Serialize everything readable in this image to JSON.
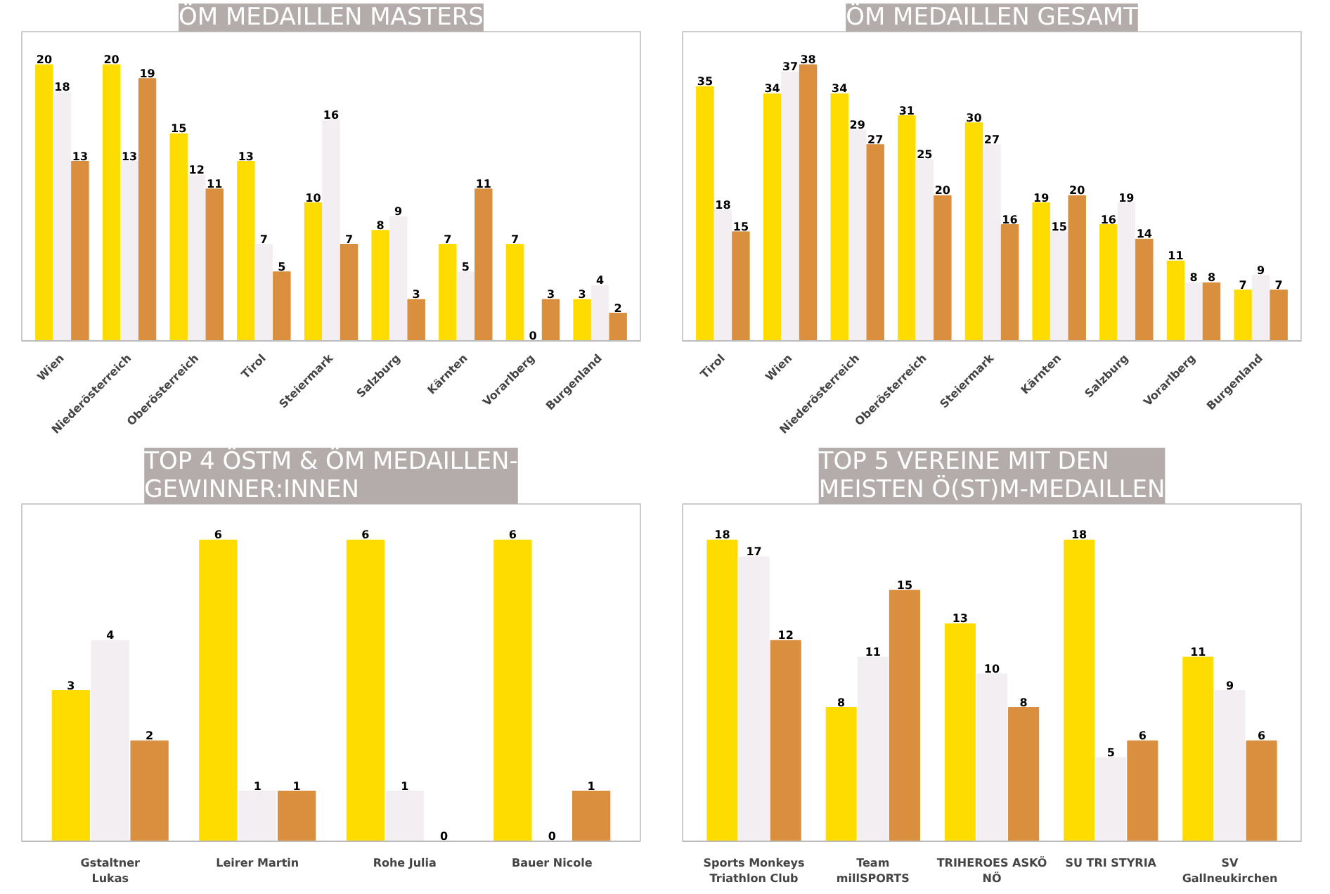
{
  "chart_data": [
    {
      "type": "bar",
      "title": "ÖM MEDAILLEN MASTERS",
      "categories": [
        "Wien",
        "Niederösterreich",
        "Oberösterreich",
        "Tirol",
        "Steiermark",
        "Salzburg",
        "Kärnten",
        "Vorarlberg",
        "Burgenland"
      ],
      "data_labels": true,
      "series": [
        {
          "color": "#ffdc00",
          "values": [
            20,
            20,
            15,
            13,
            10,
            8,
            7,
            7,
            3
          ]
        },
        {
          "color": "#f2eef2",
          "values": [
            18,
            13,
            12,
            7,
            16,
            9,
            5,
            0,
            4
          ]
        },
        {
          "color": "#d98f3e",
          "values": [
            13,
            19,
            11,
            5,
            7,
            3,
            11,
            3,
            2
          ]
        }
      ]
    },
    {
      "type": "bar",
      "title": "ÖM MEDAILLEN GESAMT",
      "categories": [
        "Tirol",
        "Wien",
        "Niederösterreich",
        "Oberösterreich",
        "Steiermark",
        "Kärnten",
        "Salzburg",
        "Vorarlberg",
        "Burgenland"
      ],
      "data_labels": true,
      "series": [
        {
          "color": "#ffdc00",
          "values": [
            35,
            34,
            34,
            31,
            30,
            19,
            16,
            11,
            7
          ]
        },
        {
          "color": "#f2eef2",
          "values": [
            18,
            37,
            29,
            25,
            27,
            15,
            19,
            8,
            9
          ]
        },
        {
          "color": "#d98f3e",
          "values": [
            15,
            38,
            27,
            20,
            16,
            20,
            14,
            8,
            7
          ]
        }
      ]
    },
    {
      "type": "bar",
      "title": "TOP 4 ÖSTM & ÖM MEDAILLEN-\nGEWINNER:INNEN",
      "categories": [
        "Gstaltner Lukas",
        "Leirer Martin",
        "Rohe Julia",
        "Bauer Nicole"
      ],
      "data_labels": true,
      "series": [
        {
          "color": "#ffdc00",
          "values": [
            3,
            6,
            6,
            6
          ]
        },
        {
          "color": "#f2eef2",
          "values": [
            4,
            1,
            1,
            0
          ]
        },
        {
          "color": "#d98f3e",
          "values": [
            2,
            1,
            0,
            1
          ]
        }
      ]
    },
    {
      "type": "bar",
      "title": "TOP 5 VEREINE MIT DEN\nMEISTEN Ö(ST)M-MEDAILLEN",
      "categories": [
        "Sports Monkeys Triathlon Club",
        "Team millSPORTS",
        "TRIHEROES ASKÖ NÖ",
        "SU TRI STYRIA",
        "SV Gallneukirchen"
      ],
      "data_labels": true,
      "series": [
        {
          "color": "#ffdc00",
          "values": [
            18,
            8,
            13,
            18,
            11
          ]
        },
        {
          "color": "#f2eef2",
          "values": [
            17,
            11,
            10,
            5,
            9
          ]
        },
        {
          "color": "#d98f3e",
          "values": [
            12,
            15,
            8,
            6,
            6
          ]
        }
      ]
    }
  ]
}
